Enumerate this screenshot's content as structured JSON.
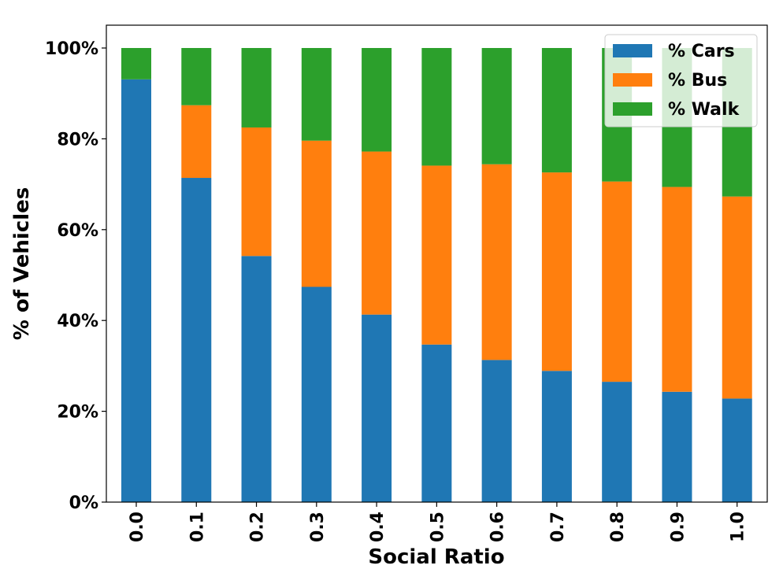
{
  "chart_data": {
    "type": "bar",
    "stacked": true,
    "title": "",
    "xlabel": "Social Ratio",
    "ylabel": "% of Vehicles",
    "categories": [
      "0.0",
      "0.1",
      "0.2",
      "0.3",
      "0.4",
      "0.5",
      "0.6",
      "0.7",
      "0.8",
      "0.9",
      "1.0"
    ],
    "ylim": [
      0,
      1.05
    ],
    "yticks": [
      0,
      0.2,
      0.4,
      0.6,
      0.8,
      1.0
    ],
    "ytick_labels": [
      "0%",
      "20%",
      "40%",
      "60%",
      "80%",
      "100%"
    ],
    "grid": false,
    "legend_position": "top-right",
    "series": [
      {
        "name": "% Cars",
        "color": "#1f77b4",
        "values": [
          0.931,
          0.714,
          0.542,
          0.474,
          0.413,
          0.347,
          0.313,
          0.289,
          0.265,
          0.243,
          0.228
        ]
      },
      {
        "name": "% Bus",
        "color": "#ff7f0e",
        "values": [
          0.0,
          0.16,
          0.283,
          0.322,
          0.359,
          0.394,
          0.431,
          0.437,
          0.441,
          0.451,
          0.445
        ]
      },
      {
        "name": "% Walk",
        "color": "#2ca02c",
        "values": [
          0.069,
          0.126,
          0.175,
          0.204,
          0.228,
          0.259,
          0.256,
          0.274,
          0.294,
          0.306,
          0.327
        ]
      }
    ]
  }
}
